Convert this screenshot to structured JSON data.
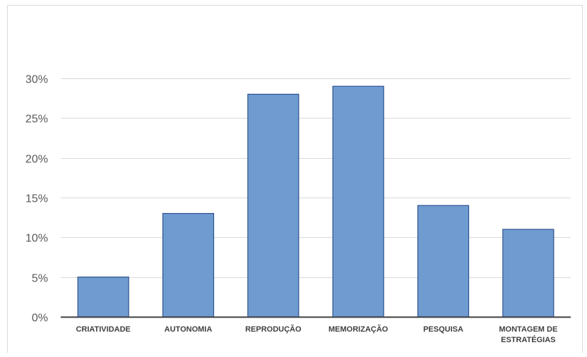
{
  "chart_data": {
    "type": "bar",
    "categories": [
      "CRIATIVIDADE",
      "AUTONOMIA",
      "REPRODUÇÃO",
      "MEMORIZAÇÃO",
      "PESQUISA",
      "MONTAGEM DE ESTRATÉGIAS"
    ],
    "category_lines": [
      [
        "CRIATIVIDADE"
      ],
      [
        "AUTONOMIA"
      ],
      [
        "REPRODUÇÃO"
      ],
      [
        "MEMORIZAÇÃO"
      ],
      [
        "PESQUISA"
      ],
      [
        "MONTAGEM DE",
        "ESTRATÉGIAS"
      ]
    ],
    "values": [
      5,
      13,
      28,
      29,
      14,
      11
    ],
    "ylim": [
      0,
      30
    ],
    "yticks": [
      0,
      5,
      10,
      15,
      20,
      25,
      30
    ],
    "ytick_labels": [
      "0%",
      "5%",
      "10%",
      "15%",
      "20%",
      "25%",
      "30%"
    ],
    "grid": true,
    "legend": "none",
    "colors": {
      "bar_fill": "#6f9bd1",
      "bar_stroke": "#2f528f",
      "grid": "#d9d9d9",
      "axis": "#404040"
    }
  }
}
